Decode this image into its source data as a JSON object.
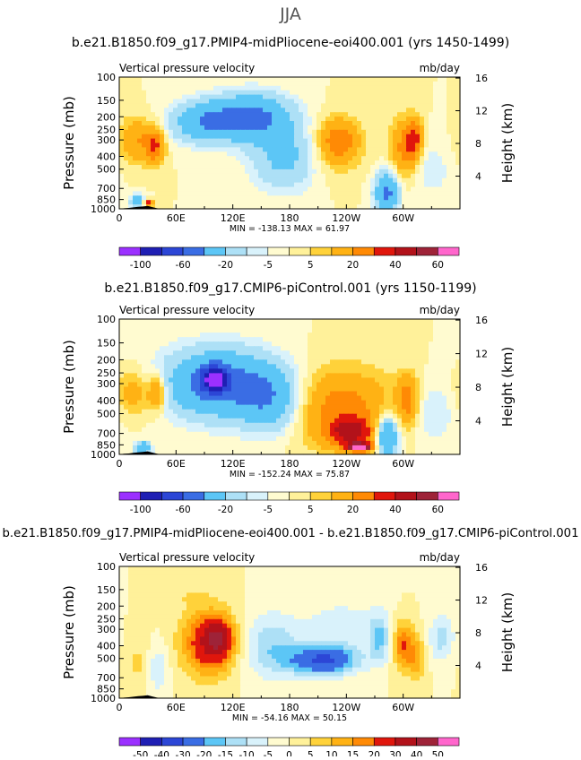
{
  "page_title": "JJA",
  "chart_data": [
    {
      "type": "heatmap",
      "title": "b.e21.B1850.f09_g17.PMIP4-midPliocene-eoi400.001 (yrs 1450-1499)",
      "left_label": "Vertical pressure velocity",
      "right_label": "mb/day",
      "ylabel": "Pressure (mb)",
      "ylabel_right": "Height (km)",
      "x_ticks": [
        "0",
        "60E",
        "120E",
        "180",
        "120W",
        "60W"
      ],
      "x_values": [
        0,
        60,
        120,
        180,
        240,
        300
      ],
      "xlim": [
        0,
        360
      ],
      "y_ticks": [
        "100",
        "150",
        "200",
        "250",
        "300",
        "400",
        "500",
        "700",
        "850",
        "1000"
      ],
      "y_values": [
        100,
        150,
        200,
        250,
        300,
        400,
        500,
        700,
        850,
        1000
      ],
      "ylim": [
        1000,
        100
      ],
      "height_ticks": [
        "4",
        "8",
        "12",
        "16"
      ],
      "height_values": [
        4,
        8,
        12,
        16
      ],
      "stats": "MIN = -138.13   MAX =  61.97",
      "min": -138.13,
      "max": 61.97,
      "colorbar_labels": [
        "-100",
        "-60",
        "-20",
        "-5",
        "5",
        "20",
        "40",
        "60"
      ],
      "levels": [
        -100,
        -80,
        -60,
        -40,
        -20,
        -10,
        -5,
        0,
        5,
        10,
        20,
        30,
        40,
        50,
        60
      ],
      "features": [
        {
          "x": 18,
          "p": 300,
          "v": 20,
          "wx": 12,
          "wy": 0.55
        },
        {
          "x": 38,
          "p": 330,
          "v": 30,
          "wx": 7,
          "wy": 0.45
        },
        {
          "x": 20,
          "p": 880,
          "v": -35,
          "wx": 6,
          "wy": 0.15
        },
        {
          "x": 30,
          "p": 900,
          "v": 40,
          "wx": 4,
          "wy": 0.1
        },
        {
          "x": 90,
          "p": 220,
          "v": -35,
          "wx": 25,
          "wy": 0.5
        },
        {
          "x": 140,
          "p": 200,
          "v": -45,
          "wx": 28,
          "wy": 0.55
        },
        {
          "x": 175,
          "p": 400,
          "v": -25,
          "wx": 25,
          "wy": 0.8
        },
        {
          "x": 225,
          "p": 350,
          "v": 10,
          "wx": 22,
          "wy": 0.75
        },
        {
          "x": 232,
          "p": 300,
          "v": 22,
          "wx": 14,
          "wy": 0.5
        },
        {
          "x": 283,
          "p": 750,
          "v": -45,
          "wx": 9,
          "wy": 0.5
        },
        {
          "x": 300,
          "p": 350,
          "v": 22,
          "wx": 10,
          "wy": 0.75
        },
        {
          "x": 312,
          "p": 300,
          "v": 30,
          "wx": 6,
          "wy": 0.5
        },
        {
          "x": 330,
          "p": 500,
          "v": -8,
          "wx": 15,
          "wy": 0.7
        }
      ]
    },
    {
      "type": "heatmap",
      "title": "b.e21.B1850.f09_g17.CMIP6-piControl.001 (yrs 1150-1199)",
      "left_label": "Vertical pressure velocity",
      "right_label": "mb/day",
      "ylabel": "Pressure (mb)",
      "ylabel_right": "Height (km)",
      "x_ticks": [
        "0",
        "60E",
        "120E",
        "180",
        "120W",
        "60W"
      ],
      "x_values": [
        0,
        60,
        120,
        180,
        240,
        300
      ],
      "xlim": [
        0,
        360
      ],
      "y_ticks": [
        "100",
        "150",
        "200",
        "250",
        "300",
        "400",
        "500",
        "700",
        "850",
        "1000"
      ],
      "y_values": [
        100,
        150,
        200,
        250,
        300,
        400,
        500,
        700,
        850,
        1000
      ],
      "ylim": [
        1000,
        100
      ],
      "height_ticks": [
        "4",
        "8",
        "12",
        "16"
      ],
      "height_values": [
        4,
        8,
        12,
        16
      ],
      "stats": "MIN = -152.24   MAX =  75.87",
      "min": -152.24,
      "max": 75.87,
      "colorbar_labels": [
        "-100",
        "-60",
        "-20",
        "-5",
        "5",
        "20",
        "40",
        "60"
      ],
      "levels": [
        -100,
        -80,
        -60,
        -40,
        -20,
        -10,
        -5,
        0,
        5,
        10,
        20,
        30,
        40,
        50,
        60
      ],
      "features": [
        {
          "x": 15,
          "p": 350,
          "v": 18,
          "wx": 12,
          "wy": 0.55
        },
        {
          "x": 40,
          "p": 350,
          "v": 28,
          "wx": 7,
          "wy": 0.45
        },
        {
          "x": 25,
          "p": 900,
          "v": -40,
          "wx": 6,
          "wy": 0.15
        },
        {
          "x": 105,
          "p": 300,
          "v": -50,
          "wx": 40,
          "wy": 0.8
        },
        {
          "x": 100,
          "p": 280,
          "v": -75,
          "wx": 10,
          "wy": 0.3
        },
        {
          "x": 160,
          "p": 400,
          "v": -30,
          "wx": 22,
          "wy": 0.75
        },
        {
          "x": 235,
          "p": 450,
          "v": 25,
          "wx": 38,
          "wy": 0.9
        },
        {
          "x": 245,
          "p": 700,
          "v": 35,
          "wx": 18,
          "wy": 0.35
        },
        {
          "x": 255,
          "p": 880,
          "v": 55,
          "wx": 10,
          "wy": 0.1
        },
        {
          "x": 283,
          "p": 750,
          "v": -50,
          "wx": 8,
          "wy": 0.5
        },
        {
          "x": 305,
          "p": 400,
          "v": 25,
          "wx": 8,
          "wy": 0.6
        },
        {
          "x": 330,
          "p": 500,
          "v": -10,
          "wx": 18,
          "wy": 0.7
        }
      ]
    },
    {
      "type": "heatmap",
      "title": "b.e21.B1850.f09_g17.PMIP4-midPliocene-eoi400.001 - b.e21.B1850.f09_g17.CMIP6-piControl.001",
      "left_label": "Vertical pressure velocity",
      "right_label": "mb/day",
      "ylabel": "Pressure (mb)",
      "ylabel_right": "Height (km)",
      "x_ticks": [
        "0",
        "60E",
        "120E",
        "180",
        "120W",
        "60W"
      ],
      "x_values": [
        0,
        60,
        120,
        180,
        240,
        300
      ],
      "xlim": [
        0,
        360
      ],
      "y_ticks": [
        "100",
        "150",
        "200",
        "250",
        "300",
        "400",
        "500",
        "700",
        "850",
        "1000"
      ],
      "y_values": [
        100,
        150,
        200,
        250,
        300,
        400,
        500,
        700,
        850,
        1000
      ],
      "ylim": [
        1000,
        100
      ],
      "height_ticks": [
        "4",
        "8",
        "12",
        "16"
      ],
      "height_values": [
        4,
        8,
        12,
        16
      ],
      "stats": "MIN = -54.16   MAX =  50.15",
      "min": -54.16,
      "max": 50.15,
      "colorbar_labels": [
        "-50",
        "-40",
        "-30",
        "-20",
        "-15",
        "-10",
        "-5",
        "0",
        "5",
        "10",
        "15",
        "20",
        "30",
        "40",
        "50"
      ],
      "levels": [
        -50,
        -40,
        -30,
        -20,
        -15,
        -10,
        -5,
        0,
        5,
        10,
        15,
        20,
        30,
        40,
        50
      ],
      "features": [
        {
          "x": 95,
          "p": 380,
          "v": 28,
          "wx": 20,
          "wy": 0.8
        },
        {
          "x": 105,
          "p": 350,
          "v": 22,
          "wx": 10,
          "wy": 0.45
        },
        {
          "x": 20,
          "p": 550,
          "v": 6,
          "wx": 10,
          "wy": 0.7
        },
        {
          "x": 40,
          "p": 600,
          "v": -10,
          "wx": 8,
          "wy": 0.6
        },
        {
          "x": 160,
          "p": 400,
          "v": -14,
          "wx": 22,
          "wy": 0.8
        },
        {
          "x": 215,
          "p": 520,
          "v": -30,
          "wx": 25,
          "wy": 0.35
        },
        {
          "x": 235,
          "p": 300,
          "v": -8,
          "wx": 30,
          "wy": 0.8
        },
        {
          "x": 275,
          "p": 350,
          "v": -15,
          "wx": 8,
          "wy": 0.6
        },
        {
          "x": 300,
          "p": 400,
          "v": 20,
          "wx": 8,
          "wy": 0.6
        },
        {
          "x": 315,
          "p": 500,
          "v": 12,
          "wx": 7,
          "wy": 0.6
        },
        {
          "x": 340,
          "p": 350,
          "v": -12,
          "wx": 10,
          "wy": 0.6
        },
        {
          "x": 75,
          "p": 170,
          "v": 4,
          "wx": 18,
          "wy": 0.2
        }
      ]
    }
  ],
  "colors": {
    "diverging": [
      "#9b30ff",
      "#1f1fb4",
      "#2c46d6",
      "#3a6de4",
      "#23a0f0",
      "#5cc6f6",
      "#ade0f6",
      "#d9f2fb",
      "#fffbd0",
      "#fff19a",
      "#ffd23a",
      "#ffb214",
      "#ff8a05",
      "#ff5a0a",
      "#e0160c",
      "#b2121a",
      "#9e2338",
      "#ff66cc"
    ],
    "terrain": "#000000"
  }
}
